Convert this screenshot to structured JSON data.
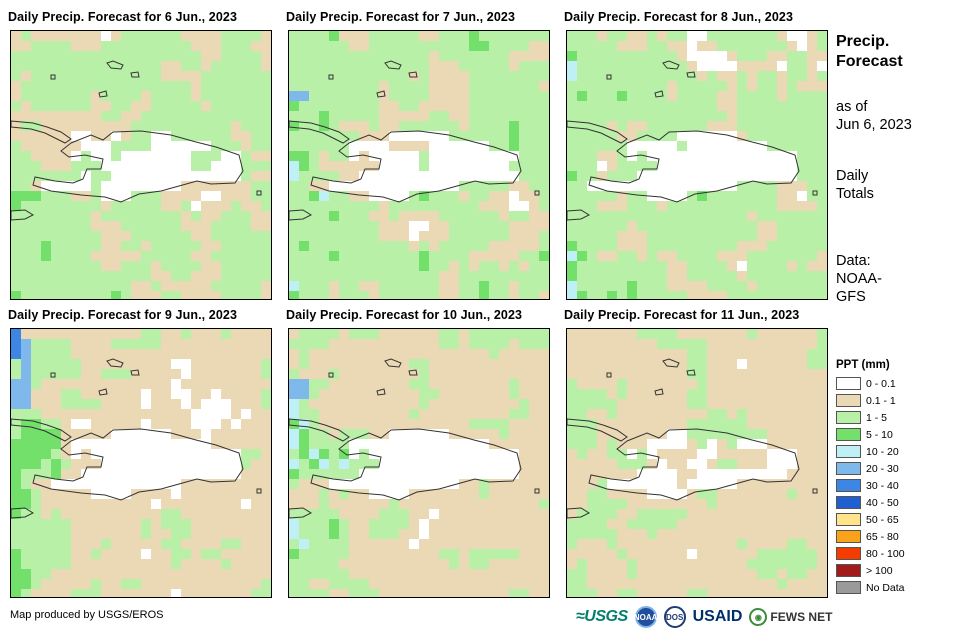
{
  "colors": {
    "c0": "#ffffff",
    "c1": "#ebd8b5",
    "c2": "#b8f0a8",
    "c3": "#72e06a",
    "c4": "#bff0f5",
    "c5": "#7fb9ec",
    "c6": "#3e86e3",
    "outline": "#333333"
  },
  "panels": [
    {
      "title": "Daily Precip. Forecast for 6 Jun., 2023",
      "seed": 11,
      "dist": [
        14,
        30,
        44,
        12,
        0,
        0,
        0
      ],
      "west_wet": 0.3,
      "hisp_dry": 0.7
    },
    {
      "title": "Daily Precip. Forecast for 7 Jun., 2023",
      "seed": 27,
      "dist": [
        20,
        22,
        40,
        12,
        6,
        0,
        0
      ],
      "west_wet": 1.0,
      "hisp_dry": 0.8
    },
    {
      "title": "Daily Precip. Forecast for 8 Jun., 2023",
      "seed": 43,
      "dist": [
        24,
        14,
        50,
        10,
        2,
        0,
        0
      ],
      "west_wet": 0.7,
      "hisp_dry": 0.9
    },
    {
      "title": "Daily Precip. Forecast for 9 Jun., 2023",
      "seed": 59,
      "dist": [
        22,
        46,
        24,
        8,
        0,
        0,
        0
      ],
      "west_wet": 1.2,
      "hisp_dry": 0.95
    },
    {
      "title": "Daily Precip. Forecast for 10 Jun., 2023",
      "seed": 71,
      "dist": [
        18,
        40,
        34,
        6,
        2,
        0,
        0
      ],
      "west_wet": 0.9,
      "hisp_dry": 0.95
    },
    {
      "title": "Daily Precip. Forecast for 11 Jun., 2023",
      "seed": 89,
      "dist": [
        18,
        44,
        30,
        8,
        0,
        0,
        0
      ],
      "west_wet": 0.2,
      "hisp_dry": 0.6
    }
  ],
  "sidebar": {
    "title_line1": "Precip.",
    "title_line2": "Forecast",
    "asof_line1": "as of",
    "asof_line2": "Jun 6, 2023",
    "daily_line1": "Daily",
    "daily_line2": "Totals",
    "data_line1": "Data:",
    "data_line2": "NOAA-",
    "data_line3": "GFS"
  },
  "legend": {
    "title": "PPT (mm)",
    "items": [
      {
        "label": "0 - 0.1",
        "color": "#ffffff"
      },
      {
        "label": "0.1 - 1",
        "color": "#ebd8b5"
      },
      {
        "label": "1 - 5",
        "color": "#b8f0a8"
      },
      {
        "label": "5 - 10",
        "color": "#72e06a"
      },
      {
        "label": "10 - 20",
        "color": "#bff0f5"
      },
      {
        "label": "20 - 30",
        "color": "#7fb9ec"
      },
      {
        "label": "30 - 40",
        "color": "#3e86e3"
      },
      {
        "label": "40 - 50",
        "color": "#1f5fd0"
      },
      {
        "label": "50 - 65",
        "color": "#ffe48a"
      },
      {
        "label": "65 - 80",
        "color": "#f9a21a"
      },
      {
        "label": "80 - 100",
        "color": "#f43b00"
      },
      {
        "label": "> 100",
        "color": "#a31c1c"
      },
      {
        "label": "No Data",
        "color": "#9a9a9a"
      }
    ]
  },
  "footer": {
    "credit": "Map produced by USGS/EROS",
    "logo_usgs": "≈USGS",
    "logo_noaa": "NOAA",
    "logo_dos": "DOS",
    "logo_usaid_main": "USAID",
    "logo_fews": "FEWS NET"
  }
}
